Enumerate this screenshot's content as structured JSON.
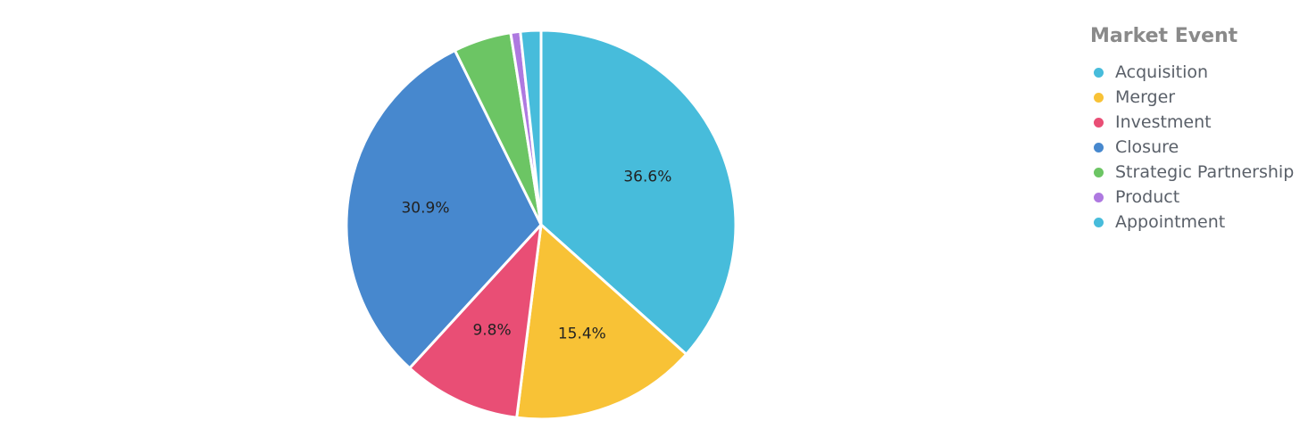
{
  "chart_data": {
    "type": "pie",
    "legend_title": "Market Event",
    "legend_position": "top-right",
    "slices": [
      {
        "name": "Acquisition",
        "value": 36.6,
        "label": "36.6%",
        "color": "#47BCDB"
      },
      {
        "name": "Merger",
        "value": 15.4,
        "label": "15.4%",
        "color": "#F8C236"
      },
      {
        "name": "Investment",
        "value": 9.8,
        "label": "9.8%",
        "color": "#E94E75"
      },
      {
        "name": "Closure",
        "value": 30.9,
        "label": "30.9%",
        "color": "#4788CE"
      },
      {
        "name": "Strategic Partnership",
        "value": 4.8,
        "label": "",
        "color": "#6CC564"
      },
      {
        "name": "Product",
        "value": 0.8,
        "label": "",
        "color": "#AE79E0"
      },
      {
        "name": "Appointment",
        "value": 1.7,
        "label": "",
        "color": "#47BCDB"
      }
    ]
  }
}
